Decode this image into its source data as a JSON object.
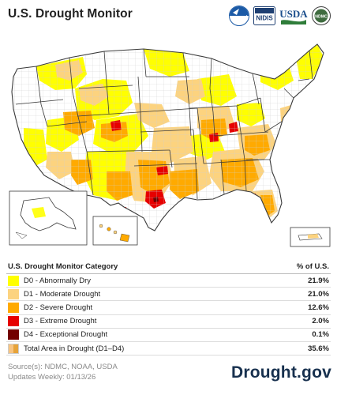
{
  "header": {
    "title": "U.S. Drought Monitor",
    "logos": {
      "noaa": "NOAA",
      "nidis": "NIDIS",
      "usda": "USDA",
      "ndmc": "NDMC"
    }
  },
  "colors": {
    "d0": "#ffff00",
    "d1": "#fcd37f",
    "d2": "#ffaa00",
    "d3": "#e60000",
    "d4": "#730000",
    "land": "#ffffff",
    "water": "#ffffff",
    "border": "#3a3a3a",
    "county": "#c8c8c8"
  },
  "legend": {
    "title": "U.S. Drought Monitor Category",
    "col_header": "% of U.S.",
    "rows": [
      {
        "label": "D0 - Abnormally Dry",
        "pct": "21.9%"
      },
      {
        "label": "D1 - Moderate Drought",
        "pct": "21.0%"
      },
      {
        "label": "D2 - Severe Drought",
        "pct": "12.6%"
      },
      {
        "label": "D3 - Extreme Drought",
        "pct": "2.0%"
      },
      {
        "label": "D4 - Exceptional Drought",
        "pct": "0.1%"
      },
      {
        "label": "Total Area in Drought (D1–D4)",
        "pct": "35.6%"
      }
    ]
  },
  "footer": {
    "sources": "Source(s): NDMC, NOAA, USDA",
    "updated": "Updates Weekly: 01/13/26",
    "brand": "Drought.gov"
  }
}
